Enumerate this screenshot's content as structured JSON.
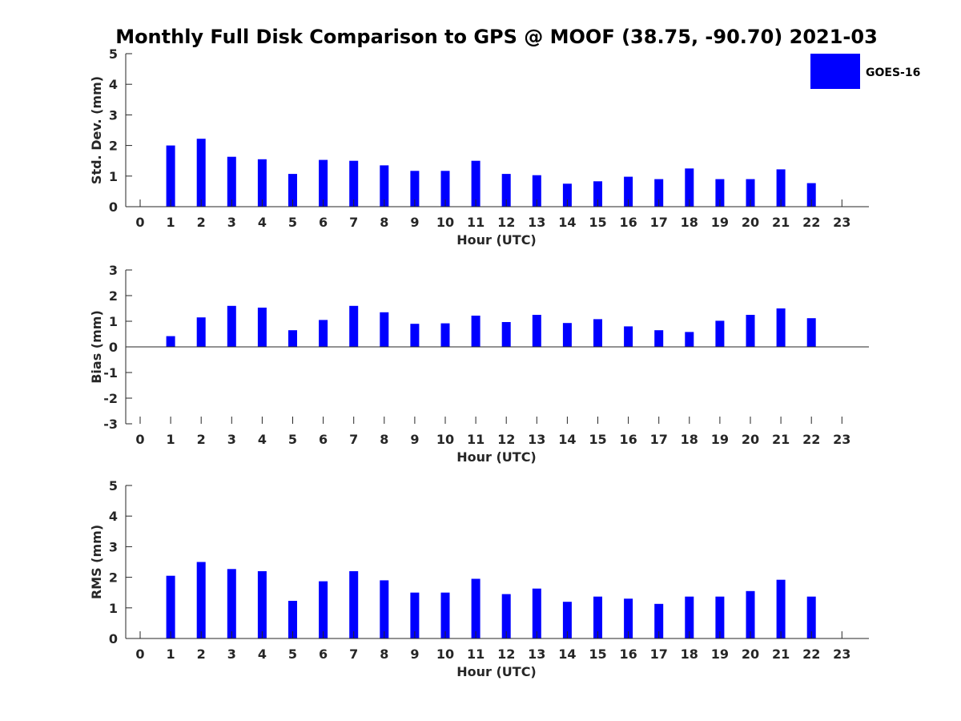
{
  "title": "Monthly Full Disk Comparison to GPS @ MOOF (38.75, -90.70) 2021-03",
  "legend": {
    "label": "GOES-16"
  },
  "colors": {
    "bar": "#0000ff",
    "axis": "#262626",
    "title": "#000000"
  },
  "chart_data": [
    {
      "type": "bar",
      "title": "",
      "xlabel": "Hour (UTC)",
      "ylabel": "Std. Dev. (mm)",
      "ylim": [
        0,
        5
      ],
      "yticks": [
        0,
        1,
        2,
        3,
        4,
        5
      ],
      "categories": [
        0,
        1,
        2,
        3,
        4,
        5,
        6,
        7,
        8,
        9,
        10,
        11,
        12,
        13,
        14,
        15,
        16,
        17,
        18,
        19,
        20,
        21,
        22,
        23
      ],
      "series": [
        {
          "name": "GOES-16",
          "values": [
            null,
            2.0,
            2.22,
            1.63,
            1.55,
            1.07,
            1.53,
            1.5,
            1.35,
            1.17,
            1.17,
            1.5,
            1.07,
            1.03,
            0.75,
            0.83,
            0.98,
            0.9,
            1.25,
            0.9,
            0.9,
            1.22,
            0.77,
            null
          ]
        }
      ]
    },
    {
      "type": "bar",
      "title": "",
      "xlabel": "Hour (UTC)",
      "ylabel": "Bias (mm)",
      "ylim": [
        -3,
        3
      ],
      "yticks": [
        -3,
        -2,
        -1,
        0,
        1,
        2,
        3
      ],
      "categories": [
        0,
        1,
        2,
        3,
        4,
        5,
        6,
        7,
        8,
        9,
        10,
        11,
        12,
        13,
        14,
        15,
        16,
        17,
        18,
        19,
        20,
        21,
        22,
        23
      ],
      "series": [
        {
          "name": "GOES-16",
          "values": [
            null,
            0.42,
            1.15,
            1.6,
            1.53,
            0.65,
            1.05,
            1.6,
            1.35,
            0.9,
            0.92,
            1.22,
            0.97,
            1.25,
            0.93,
            1.08,
            0.8,
            0.65,
            0.58,
            1.02,
            1.25,
            1.5,
            1.12,
            null
          ]
        }
      ]
    },
    {
      "type": "bar",
      "title": "",
      "xlabel": "Hour (UTC)",
      "ylabel": "RMS (mm)",
      "ylim": [
        0,
        5
      ],
      "yticks": [
        0,
        1,
        2,
        3,
        4,
        5
      ],
      "categories": [
        0,
        1,
        2,
        3,
        4,
        5,
        6,
        7,
        8,
        9,
        10,
        11,
        12,
        13,
        14,
        15,
        16,
        17,
        18,
        19,
        20,
        21,
        22,
        23
      ],
      "series": [
        {
          "name": "GOES-16",
          "values": [
            null,
            2.05,
            2.5,
            2.27,
            2.2,
            1.23,
            1.87,
            2.2,
            1.9,
            1.5,
            1.5,
            1.95,
            1.45,
            1.63,
            1.2,
            1.37,
            1.3,
            1.13,
            1.37,
            1.37,
            1.55,
            1.92,
            1.37,
            null
          ]
        }
      ]
    }
  ]
}
